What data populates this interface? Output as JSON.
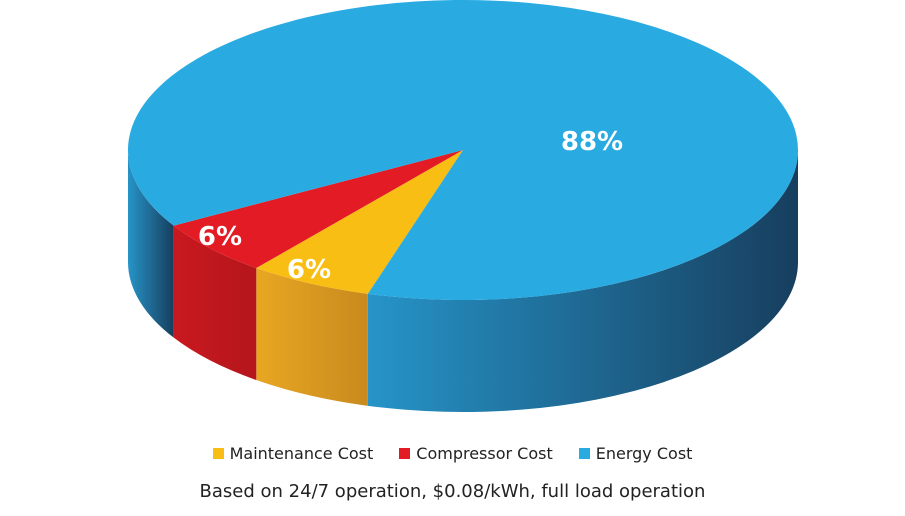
{
  "chart_data": {
    "type": "pie",
    "title": "",
    "series": [
      {
        "name": "Maintenance Cost",
        "value": 6,
        "label": "6%",
        "color": "#f9be14"
      },
      {
        "name": "Compressor Cost",
        "value": 6,
        "label": "6%",
        "color": "#e21b24"
      },
      {
        "name": "Energy Cost",
        "value": 88,
        "label": "88%",
        "color": "#29abe2"
      }
    ],
    "legend_placement": "bottom",
    "style": "3d"
  },
  "footnote": "Based on 24/7 operation, $0.08/kWh, full load operation"
}
